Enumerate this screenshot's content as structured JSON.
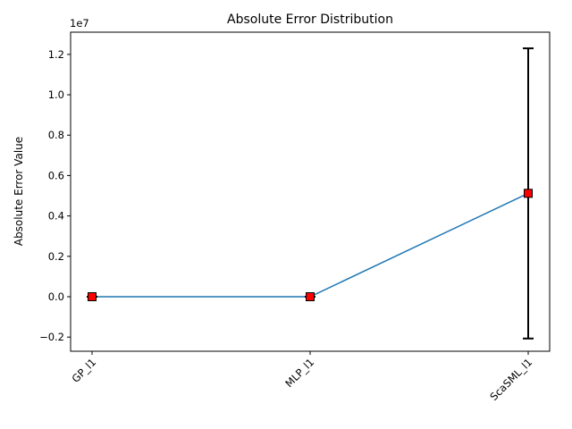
{
  "chart_data": {
    "type": "line",
    "title": "Absolute Error Distribution",
    "xlabel": "",
    "ylabel": "Absolute Error Value",
    "y_offset_label": "1e7",
    "categories": [
      "GP_l1",
      "MLP_l1",
      "ScaSML_l1"
    ],
    "y_scale": 10000000,
    "ylim": [
      -0.27,
      1.31
    ],
    "yticks": [
      -0.2,
      0.0,
      0.2,
      0.4,
      0.6,
      0.8,
      1.0,
      1.2
    ],
    "ytick_labels": [
      "−0.2",
      "0.0",
      "0.2",
      "0.4",
      "0.6",
      "0.8",
      "1.0",
      "1.2"
    ],
    "series": [
      {
        "values": [
          0.0,
          0.0,
          0.512
        ],
        "error_low": [
          0.0,
          0.0,
          -0.207
        ],
        "error_high": [
          0.0,
          0.0,
          1.23
        ],
        "line_color": "#1f77b4",
        "marker": "square",
        "marker_color": "#ff0000",
        "marker_edge": "#000000",
        "errorbar_color": "#000000"
      }
    ],
    "grid": false,
    "legend": "none"
  }
}
